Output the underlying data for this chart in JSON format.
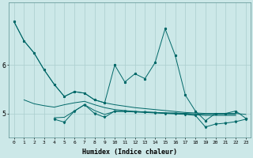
{
  "xlabel": "Humidex (Indice chaleur)",
  "x_values": [
    0,
    1,
    2,
    3,
    4,
    5,
    6,
    7,
    8,
    9,
    10,
    11,
    12,
    13,
    14,
    15,
    16,
    17,
    18,
    19,
    20,
    21,
    22,
    23
  ],
  "main_line": [
    6.9,
    6.5,
    6.25,
    5.9,
    5.6,
    5.35,
    5.45,
    5.42,
    5.28,
    5.22,
    6.0,
    5.65,
    5.82,
    5.72,
    6.05,
    6.75,
    6.2,
    5.38,
    5.05,
    4.85,
    5.0,
    5.0,
    5.05,
    4.9
  ],
  "smooth_line": [
    6.9,
    6.5,
    6.25,
    5.9,
    5.6,
    5.35,
    5.45,
    5.42,
    5.28,
    5.22,
    5.18,
    5.15,
    5.12,
    5.1,
    5.08,
    5.06,
    5.04,
    5.02,
    5.01,
    5.0,
    5.0,
    5.0,
    5.0,
    4.98
  ],
  "upper_flat": [
    null,
    5.28,
    5.2,
    5.16,
    5.13,
    5.18,
    5.22,
    5.25,
    5.18,
    5.12,
    5.08,
    5.06,
    5.04,
    5.03,
    5.02,
    5.01,
    5.01,
    5.0,
    4.99,
    4.98,
    4.98,
    4.98,
    4.98,
    null
  ],
  "lower_line": [
    null,
    null,
    null,
    null,
    4.88,
    4.82,
    5.05,
    5.18,
    5.0,
    4.92,
    5.05,
    5.04,
    5.03,
    5.02,
    5.01,
    5.0,
    4.99,
    4.98,
    4.96,
    4.72,
    4.78,
    4.8,
    4.83,
    4.88
  ],
  "mid_line": [
    null,
    null,
    null,
    null,
    4.91,
    4.92,
    5.05,
    5.18,
    5.06,
    4.98,
    5.04,
    5.04,
    5.04,
    5.03,
    5.02,
    5.01,
    5.0,
    4.99,
    4.97,
    4.96,
    4.96,
    4.96,
    4.96,
    null
  ],
  "bg_color": "#cce8e8",
  "line_color": "#006868",
  "grid_color": "#aacece",
  "ylim": [
    4.5,
    7.3
  ],
  "yticks": [
    5,
    6
  ],
  "xlim": [
    -0.5,
    23.5
  ]
}
